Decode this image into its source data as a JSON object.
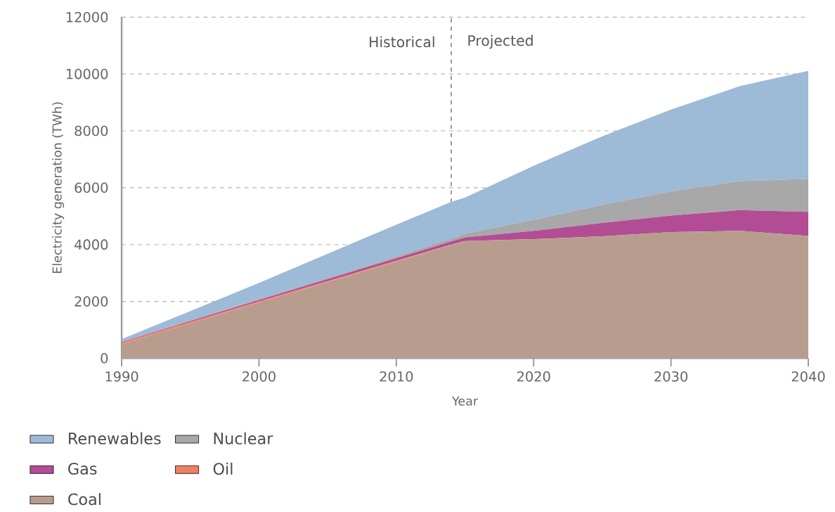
{
  "chart_data": {
    "type": "area",
    "stacked": true,
    "xlabel": "Year",
    "ylabel": "Electricity generation (TWh)",
    "x": [
      1990,
      2000,
      2010,
      2014,
      2015,
      2020,
      2025,
      2030,
      2035,
      2040
    ],
    "series": [
      {
        "name": "Coal",
        "color": "#b89d8f",
        "values": [
          500,
          1960,
          3400,
          3980,
          4120,
          4190,
          4290,
          4440,
          4480,
          4300
        ]
      },
      {
        "name": "Oil",
        "color": "#f08060",
        "values": [
          50,
          40,
          30,
          20,
          0,
          0,
          0,
          0,
          0,
          0
        ]
      },
      {
        "name": "Gas",
        "color": "#b24d95",
        "values": [
          20,
          50,
          90,
          110,
          130,
          290,
          470,
          580,
          730,
          850
        ]
      },
      {
        "name": "Nuclear",
        "color": "#a8a8a8",
        "values": [
          10,
          30,
          60,
          100,
          130,
          390,
          640,
          850,
          1020,
          1160
        ]
      },
      {
        "name": "Renewables",
        "color": "#9dbad7",
        "values": [
          90,
          570,
          1120,
          1290,
          1270,
          1900,
          2410,
          2880,
          3340,
          3800
        ]
      }
    ],
    "xlim": [
      1990,
      2040
    ],
    "ylim": [
      0,
      12000
    ],
    "xticks": [
      1990,
      2000,
      2010,
      2020,
      2030,
      2040
    ],
    "yticks": [
      0,
      2000,
      4000,
      6000,
      8000,
      10000,
      12000
    ],
    "grid": "y",
    "legend": "bottom left",
    "ref_lines": [
      {
        "axis": "x",
        "value": 2014,
        "color": "#999999",
        "line_style": "dashed"
      }
    ],
    "annotations": [
      "Historical",
      "Projected"
    ]
  }
}
